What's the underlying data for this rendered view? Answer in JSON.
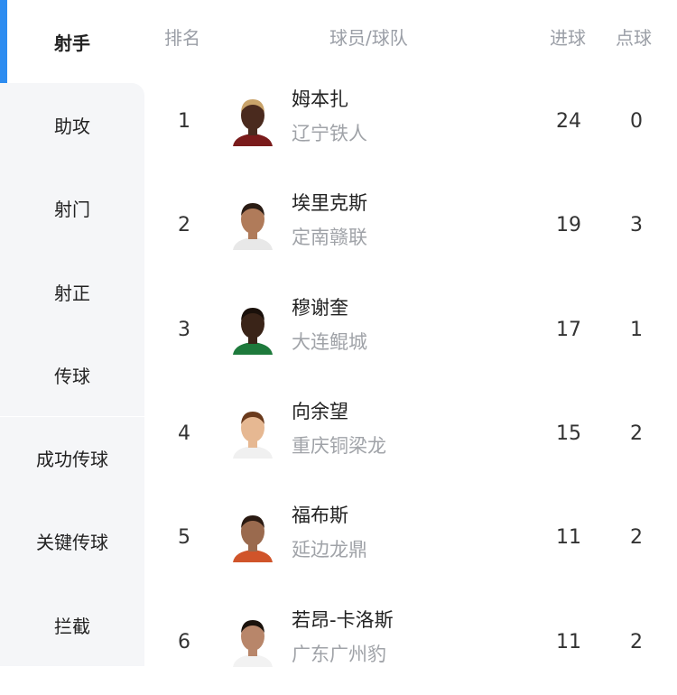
{
  "sidebar": {
    "active_color": "#2d8cf0",
    "items": [
      {
        "label": "射手",
        "active": true
      },
      {
        "label": "助攻"
      },
      {
        "label": "射门"
      },
      {
        "label": "射正"
      },
      {
        "label": "传球"
      },
      {
        "label": "成功传球"
      },
      {
        "label": "关键传球"
      },
      {
        "label": "拦截"
      }
    ]
  },
  "table": {
    "headers": {
      "rank": "排名",
      "player": "球员/球队",
      "goals": "进球",
      "penalties": "点球"
    },
    "rows": [
      {
        "rank": "1",
        "name": "姆本扎",
        "team": "辽宁铁人",
        "goals": "24",
        "penalties": "0",
        "skin": "#4a2a1e",
        "hair": "#c9a36a",
        "shirt": "#7a1b1b"
      },
      {
        "rank": "2",
        "name": "埃里克斯",
        "team": "定南赣联",
        "goals": "19",
        "penalties": "3",
        "skin": "#b07b5a",
        "hair": "#2a1c14",
        "shirt": "#e8e8e8"
      },
      {
        "rank": "3",
        "name": "穆谢奎",
        "team": "大连鲲城",
        "goals": "17",
        "penalties": "1",
        "skin": "#3a2418",
        "hair": "#1a100a",
        "shirt": "#1e7a3c"
      },
      {
        "rank": "4",
        "name": "向余望",
        "team": "重庆铜梁龙",
        "goals": "15",
        "penalties": "2",
        "skin": "#e6b892",
        "hair": "#6a3a1c",
        "shirt": "#f0f0f0"
      },
      {
        "rank": "5",
        "name": "福布斯",
        "team": "延边龙鼎",
        "goals": "11",
        "penalties": "2",
        "skin": "#9a6a4e",
        "hair": "#2a1a12",
        "shirt": "#d0542a"
      },
      {
        "rank": "6",
        "name": "若昂-卡洛斯",
        "team": "广东广州豹",
        "goals": "11",
        "penalties": "2",
        "skin": "#b8866a",
        "hair": "#1a120c",
        "shirt": "#f2f2f2"
      }
    ]
  }
}
